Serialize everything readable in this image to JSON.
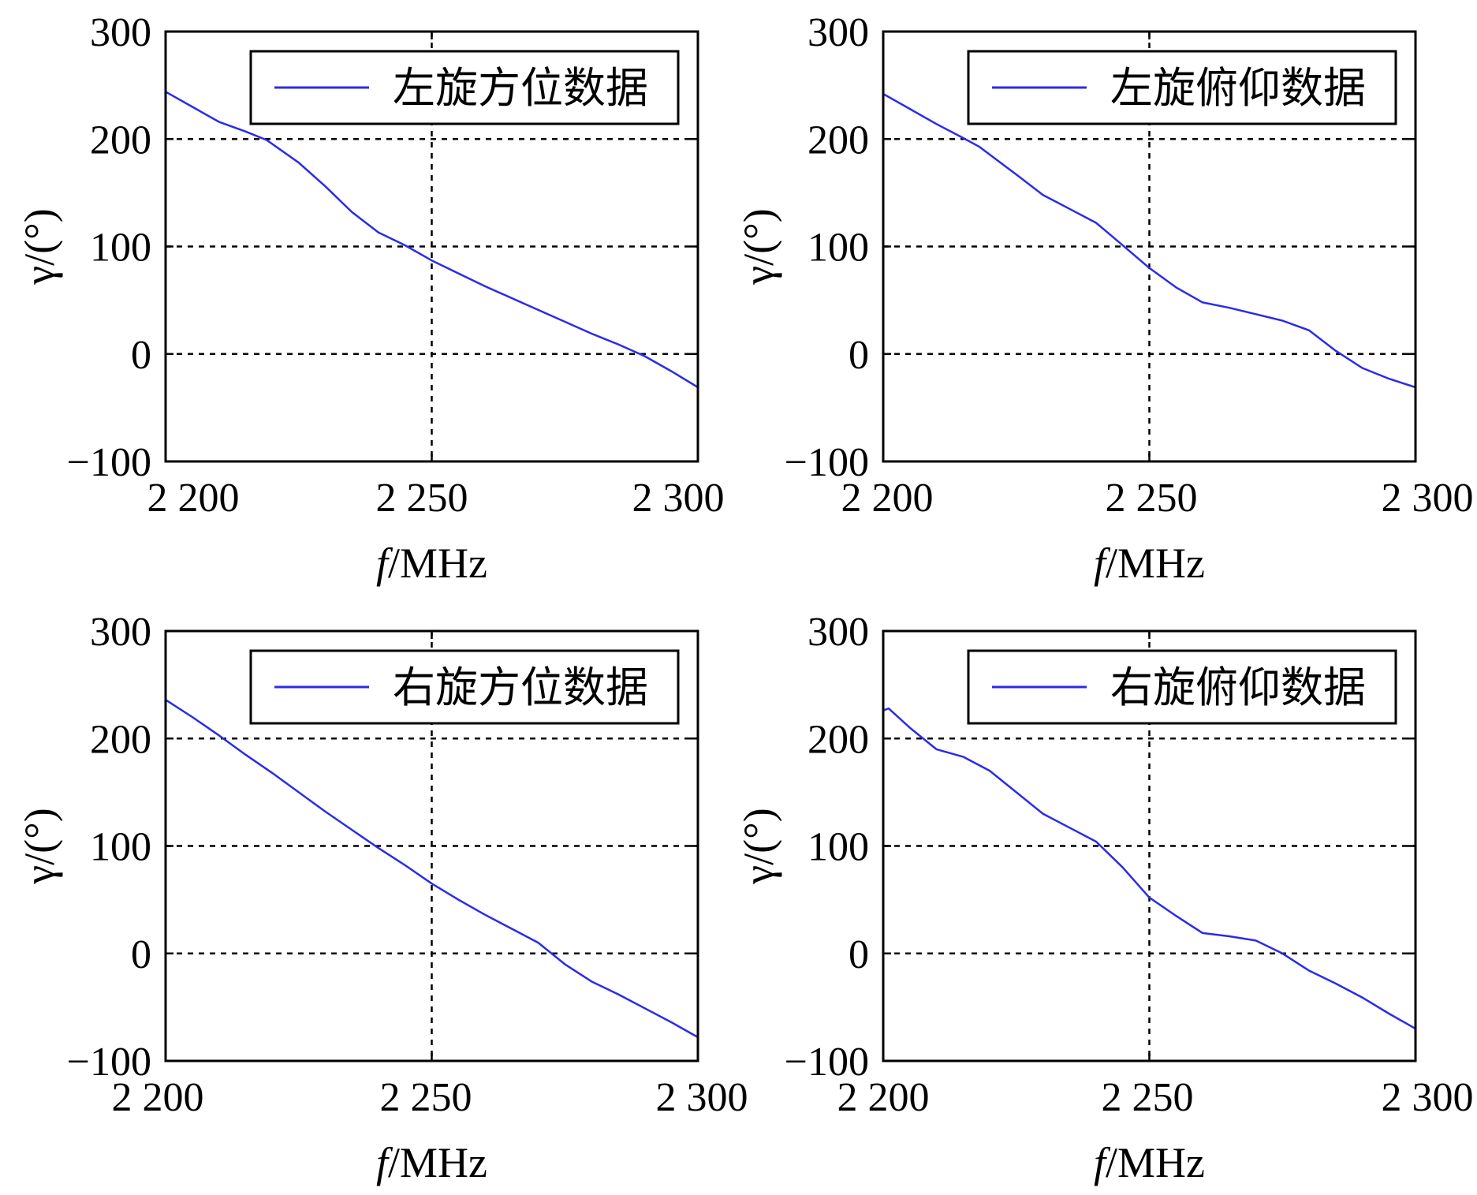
{
  "figure": {
    "background": "#ffffff",
    "line_color": "#2b2bea",
    "grid_style": "dashed black"
  },
  "chart_data": [
    {
      "type": "line",
      "xlabel_italic": "f",
      "xlabel_unit": "/MHz",
      "ylabel": "γ/(°)",
      "xlim": [
        2200,
        2300
      ],
      "ylim": [
        -100,
        300
      ],
      "xticks": [
        2200,
        2250,
        2300
      ],
      "xtick_labels": [
        "2 200",
        "2 250",
        "2 300"
      ],
      "yticks": [
        -100,
        0,
        100,
        200,
        300
      ],
      "ytick_labels": [
        "−100",
        "0",
        "100",
        "200",
        "300"
      ],
      "grid": true,
      "legend_position": "top-right",
      "series": [
        {
          "name": "左旋方位数据",
          "x": [
            2200,
            2205,
            2210,
            2215,
            2219,
            2225,
            2230,
            2235,
            2240,
            2245,
            2250,
            2255,
            2260,
            2265,
            2270,
            2275,
            2280,
            2285,
            2290,
            2295,
            2300
          ],
          "y": [
            244,
            230,
            216,
            207,
            199,
            178,
            156,
            132,
            113,
            101,
            87,
            75,
            63,
            52,
            41,
            30,
            19,
            9,
            -2,
            -16,
            -31
          ]
        }
      ]
    },
    {
      "type": "line",
      "xlabel_italic": "f",
      "xlabel_unit": "/MHz",
      "ylabel": "γ/(°)",
      "xlim": [
        2200,
        2300
      ],
      "ylim": [
        -100,
        300
      ],
      "xticks": [
        2200,
        2250,
        2300
      ],
      "xtick_labels": [
        "2 200",
        "2 250",
        "2 300"
      ],
      "yticks": [
        -100,
        0,
        100,
        200,
        300
      ],
      "ytick_labels": [
        "−100",
        "0",
        "100",
        "200",
        "300"
      ],
      "grid": true,
      "legend_position": "top-right",
      "series": [
        {
          "name": "左旋俯仰数据",
          "x": [
            2200,
            2205,
            2210,
            2215,
            2218,
            2225,
            2230,
            2235,
            2240,
            2245,
            2250,
            2255,
            2260,
            2265,
            2270,
            2275,
            2280,
            2285,
            2290,
            2295,
            2300
          ],
          "y": [
            242,
            228,
            214,
            201,
            193,
            167,
            148,
            135,
            122,
            101,
            80,
            62,
            48,
            43,
            37,
            31,
            22,
            3,
            -13,
            -23,
            -31
          ]
        }
      ]
    },
    {
      "type": "line",
      "xlabel_italic": "f",
      "xlabel_unit": "/MHz",
      "ylabel": "γ/(°)",
      "xlim": [
        2200,
        2300
      ],
      "ylim": [
        -100,
        300
      ],
      "xticks": [
        2200,
        2250,
        2300
      ],
      "xtick_labels": [
        "2 200",
        "2 250",
        "2 300"
      ],
      "yticks": [
        -100,
        0,
        100,
        200,
        300
      ],
      "ytick_labels": [
        "−100",
        "0",
        "100",
        "200",
        "300"
      ],
      "grid": true,
      "legend_position": "top-right",
      "series": [
        {
          "name": "右旋方位数据",
          "x": [
            2200,
            2205,
            2210,
            2215,
            2220,
            2225,
            2230,
            2235,
            2240,
            2245,
            2250,
            2255,
            2260,
            2265,
            2270,
            2275,
            2280,
            2285,
            2290,
            2295,
            2300
          ],
          "y": [
            236,
            220,
            203,
            185,
            168,
            150,
            132,
            115,
            98,
            82,
            65,
            50,
            36,
            23,
            10,
            -10,
            -26,
            -38,
            -51,
            -64,
            -78
          ]
        }
      ]
    },
    {
      "type": "line",
      "xlabel_italic": "f",
      "xlabel_unit": "/MHz",
      "ylabel": "γ/(°)",
      "xlim": [
        2200,
        2300
      ],
      "ylim": [
        -100,
        300
      ],
      "xticks": [
        2200,
        2250,
        2300
      ],
      "xtick_labels": [
        "2 200",
        "2 250",
        "2 300"
      ],
      "yticks": [
        -100,
        0,
        100,
        200,
        300
      ],
      "ytick_labels": [
        "−100",
        "0",
        "100",
        "200",
        "300"
      ],
      "grid": true,
      "legend_position": "top-right",
      "series": [
        {
          "name": "右旋俯仰数据",
          "x": [
            2200,
            2201,
            2205,
            2210,
            2215,
            2220,
            2225,
            2230,
            2235,
            2240,
            2245,
            2250,
            2255,
            2260,
            2265,
            2270,
            2275,
            2280,
            2285,
            2290,
            2295,
            2300
          ],
          "y": [
            226,
            228,
            210,
            190,
            183,
            170,
            150,
            130,
            117,
            104,
            80,
            52,
            35,
            19,
            16,
            12,
            0,
            -16,
            -28,
            -41,
            -56,
            -70
          ]
        }
      ]
    }
  ]
}
